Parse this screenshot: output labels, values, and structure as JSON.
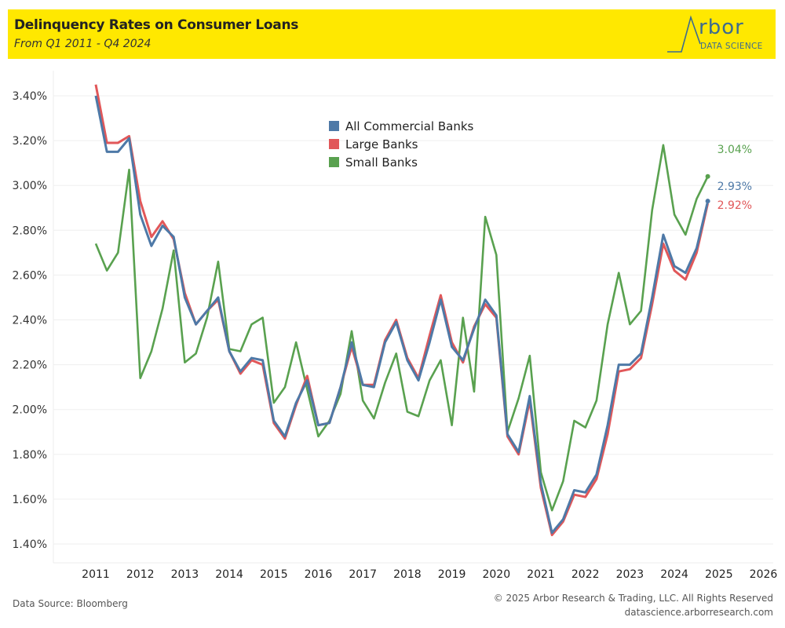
{
  "header": {
    "title": "Delinquency Rates on Consumer Loans",
    "subtitle": "From Q1 2011 - Q4 2024",
    "logo_word": "rbor",
    "logo_sub": "DATA SCIENCE",
    "background_color": "#ffe800"
  },
  "footer": {
    "source": "Data Source: Bloomberg",
    "copyright": "© 2025 Arbor Research & Trading, LLC. All Rights Reserved",
    "website": "datascience.arborresearch.com"
  },
  "chart_data": {
    "type": "line",
    "title": "Delinquency Rates on Consumer Loans",
    "subtitle": "From Q1 2011 - Q4 2024",
    "xlabel": "",
    "ylabel": "",
    "x_ticks": [
      "2011",
      "2012",
      "2013",
      "2014",
      "2015",
      "2016",
      "2017",
      "2018",
      "2019",
      "2020",
      "2021",
      "2022",
      "2023",
      "2024",
      "2025",
      "2026"
    ],
    "xlim": [
      2011,
      2026.3
    ],
    "y_ticks": [
      "1.40%",
      "1.60%",
      "1.80%",
      "2.00%",
      "2.20%",
      "2.40%",
      "2.60%",
      "2.80%",
      "3.00%",
      "3.20%",
      "3.40%"
    ],
    "ylim": [
      1.35,
      3.5
    ],
    "grid": true,
    "legend_position": "top-center",
    "x": [
      "2011Q1",
      "2011Q2",
      "2011Q3",
      "2011Q4",
      "2012Q1",
      "2012Q2",
      "2012Q3",
      "2012Q4",
      "2013Q1",
      "2013Q2",
      "2013Q3",
      "2013Q4",
      "2014Q1",
      "2014Q2",
      "2014Q3",
      "2014Q4",
      "2015Q1",
      "2015Q2",
      "2015Q3",
      "2015Q4",
      "2016Q1",
      "2016Q2",
      "2016Q3",
      "2016Q4",
      "2017Q1",
      "2017Q2",
      "2017Q3",
      "2017Q4",
      "2018Q1",
      "2018Q2",
      "2018Q3",
      "2018Q4",
      "2019Q1",
      "2019Q2",
      "2019Q3",
      "2019Q4",
      "2020Q1",
      "2020Q2",
      "2020Q3",
      "2020Q4",
      "2021Q1",
      "2021Q2",
      "2021Q3",
      "2021Q4",
      "2022Q1",
      "2022Q2",
      "2022Q3",
      "2022Q4",
      "2023Q1",
      "2023Q2",
      "2023Q3",
      "2023Q4",
      "2024Q1",
      "2024Q2",
      "2024Q3",
      "2024Q4"
    ],
    "series": [
      {
        "name": "All Commercial Banks",
        "color": "#4e79a7",
        "values": [
          3.4,
          3.15,
          3.15,
          3.21,
          2.87,
          2.73,
          2.82,
          2.77,
          2.5,
          2.38,
          2.44,
          2.5,
          2.26,
          2.17,
          2.23,
          2.22,
          1.95,
          1.88,
          2.03,
          2.13,
          1.93,
          1.94,
          2.1,
          2.3,
          2.11,
          2.1,
          2.3,
          2.39,
          2.22,
          2.13,
          2.3,
          2.49,
          2.28,
          2.22,
          2.36,
          2.49,
          2.42,
          1.89,
          1.81,
          2.06,
          1.67,
          1.45,
          1.51,
          1.64,
          1.63,
          1.71,
          1.93,
          2.2,
          2.2,
          2.25,
          2.5,
          2.78,
          2.64,
          2.61,
          2.72,
          2.93
        ],
        "end_label": "2.93%"
      },
      {
        "name": "Large Banks",
        "color": "#e15759",
        "values": [
          3.45,
          3.19,
          3.19,
          3.22,
          2.93,
          2.77,
          2.84,
          2.76,
          2.52,
          2.38,
          2.44,
          2.49,
          2.26,
          2.16,
          2.22,
          2.2,
          1.94,
          1.87,
          2.02,
          2.15,
          1.93,
          1.94,
          2.1,
          2.28,
          2.11,
          2.11,
          2.31,
          2.4,
          2.23,
          2.14,
          2.33,
          2.51,
          2.3,
          2.21,
          2.37,
          2.47,
          2.41,
          1.88,
          1.8,
          2.04,
          1.65,
          1.44,
          1.5,
          1.62,
          1.61,
          1.69,
          1.89,
          2.17,
          2.18,
          2.23,
          2.47,
          2.74,
          2.62,
          2.58,
          2.7,
          2.92
        ],
        "end_label": "2.92%"
      },
      {
        "name": "Small Banks",
        "color": "#59a14f",
        "values": [
          2.74,
          2.62,
          2.7,
          3.07,
          2.14,
          2.26,
          2.45,
          2.71,
          2.21,
          2.25,
          2.41,
          2.66,
          2.27,
          2.26,
          2.38,
          2.41,
          2.03,
          2.1,
          2.3,
          2.09,
          1.88,
          1.95,
          2.07,
          2.35,
          2.04,
          1.96,
          2.12,
          2.25,
          1.99,
          1.97,
          2.13,
          2.22,
          1.93,
          2.41,
          2.08,
          2.86,
          2.69,
          1.9,
          2.05,
          2.24,
          1.72,
          1.55,
          1.68,
          1.95,
          1.92,
          2.04,
          2.38,
          2.61,
          2.38,
          2.44,
          2.89,
          3.18,
          2.87,
          2.78,
          2.94,
          3.04
        ],
        "end_label": "3.04%"
      }
    ]
  }
}
